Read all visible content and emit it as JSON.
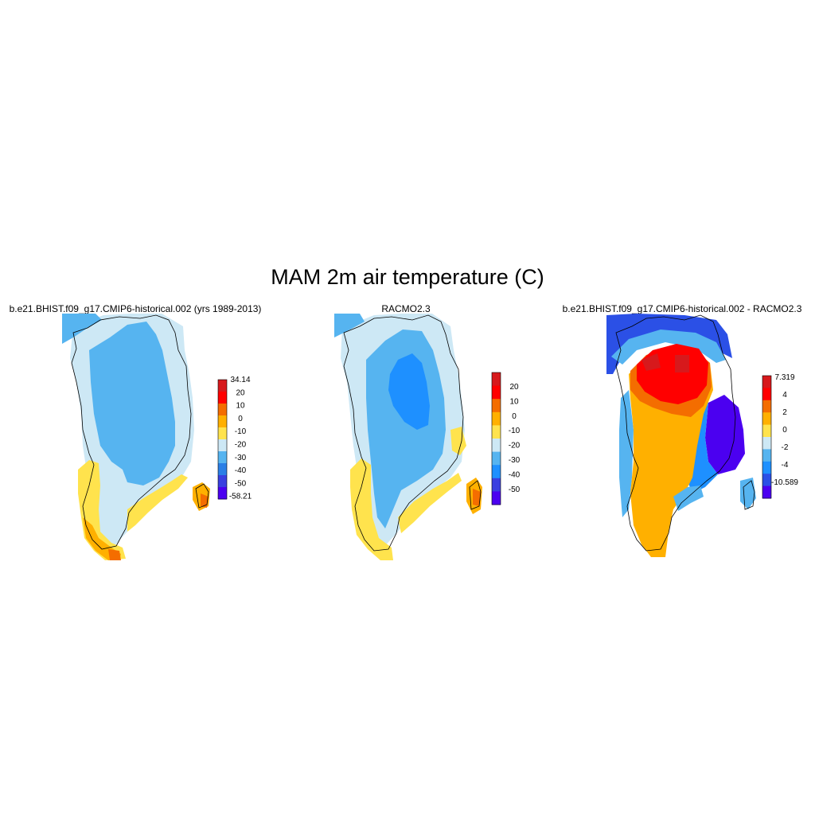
{
  "title": "MAM 2m air temperature (C)",
  "panels": [
    {
      "title": "b.e21.BHIST.f09_g17.CMIP6-historical.002 (yrs 1989-2013)",
      "colorbar": {
        "labels": [
          "34.14",
          "20",
          "10",
          "0",
          "-10",
          "-20",
          "-30",
          "-40",
          "-50",
          "-58.21"
        ],
        "colors": [
          "#d7191c",
          "#ff0000",
          "#f46d00",
          "#ffb000",
          "#ffe34d",
          "#cde8f5",
          "#56b4f0",
          "#2b7fe6",
          "#3a40e0",
          "#4b00f0"
        ]
      }
    },
    {
      "title": "RACMO2.3",
      "colorbar": {
        "labels": [
          "20",
          "10",
          "0",
          "-10",
          "-20",
          "-30",
          "-40",
          "-50"
        ],
        "colors": [
          "#d7191c",
          "#ff0000",
          "#f46d00",
          "#ffb000",
          "#ffe34d",
          "#cde8f5",
          "#56b4f0",
          "#1e90ff",
          "#3a40e0",
          "#4b00f0"
        ]
      }
    },
    {
      "title": "b.e21.BHIST.f09_g17.CMIP6-historical.002 - RACMO2.3",
      "colorbar": {
        "labels": [
          "7.319",
          "4",
          "2",
          "0",
          "-2",
          "-4",
          "-10.589"
        ],
        "colors": [
          "#d7191c",
          "#ff0000",
          "#f46d00",
          "#ffb000",
          "#ffe34d",
          "#cde8f5",
          "#56b4f0",
          "#1e90ff",
          "#2b50e6",
          "#4b00f0"
        ]
      }
    }
  ]
}
